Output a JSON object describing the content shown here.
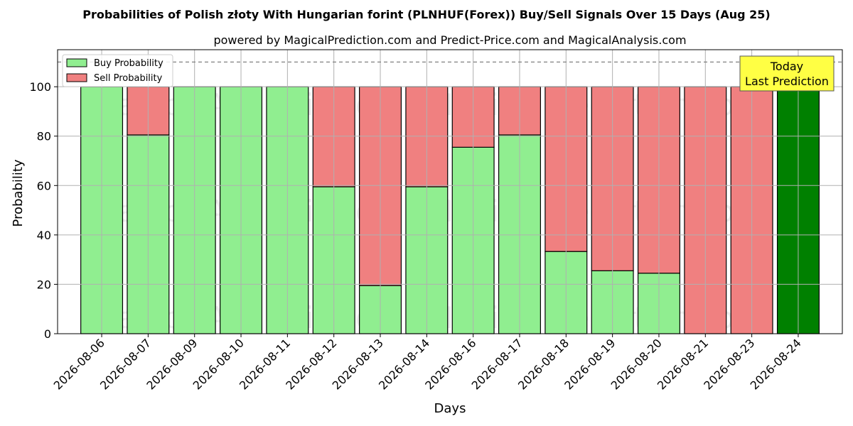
{
  "chart_data": {
    "type": "bar",
    "title": "Probabilities of Polish złoty With Hungarian forint (PLNHUF(Forex)) Buy/Sell Signals Over 15 Days (Aug 25)",
    "subtitle": "powered by MagicalPrediction.com and Predict-Price.com and MagicalAnalysis.com",
    "xlabel": "Days",
    "ylabel": "Probability",
    "ylim": [
      0,
      115
    ],
    "yticks": [
      0,
      20,
      40,
      60,
      80,
      100
    ],
    "grid": true,
    "legend_position": "top-left",
    "reference_line": 110,
    "categories": [
      "2026-08-06",
      "2026-08-07",
      "2026-08-09",
      "2026-08-10",
      "2026-08-11",
      "2026-08-12",
      "2026-08-13",
      "2026-08-14",
      "2026-08-16",
      "2026-08-17",
      "2026-08-18",
      "2026-08-19",
      "2026-08-20",
      "2026-08-21",
      "2026-08-23",
      "2026-08-24"
    ],
    "series": [
      {
        "name": "Buy Probability",
        "color": "#90ee90",
        "values": [
          100,
          80.5,
          100,
          100,
          100,
          59.5,
          19.5,
          59.5,
          75.5,
          80.5,
          33.3,
          25.5,
          24.5,
          0,
          0,
          100
        ]
      },
      {
        "name": "Sell Probability",
        "color": "#f08080",
        "values": [
          0,
          19.5,
          0,
          0,
          0,
          40.5,
          80.5,
          40.5,
          24.5,
          19.5,
          66.7,
          74.5,
          75.5,
          100,
          100,
          0
        ]
      }
    ],
    "highlight": {
      "index": 15,
      "color": "#008000",
      "label_line1": "Today",
      "label_line2": "Last Prediction",
      "box_color": "#ffff44"
    },
    "watermarks": [
      "MagicalAnalysis.com",
      "MagicalPrediction.com"
    ]
  }
}
